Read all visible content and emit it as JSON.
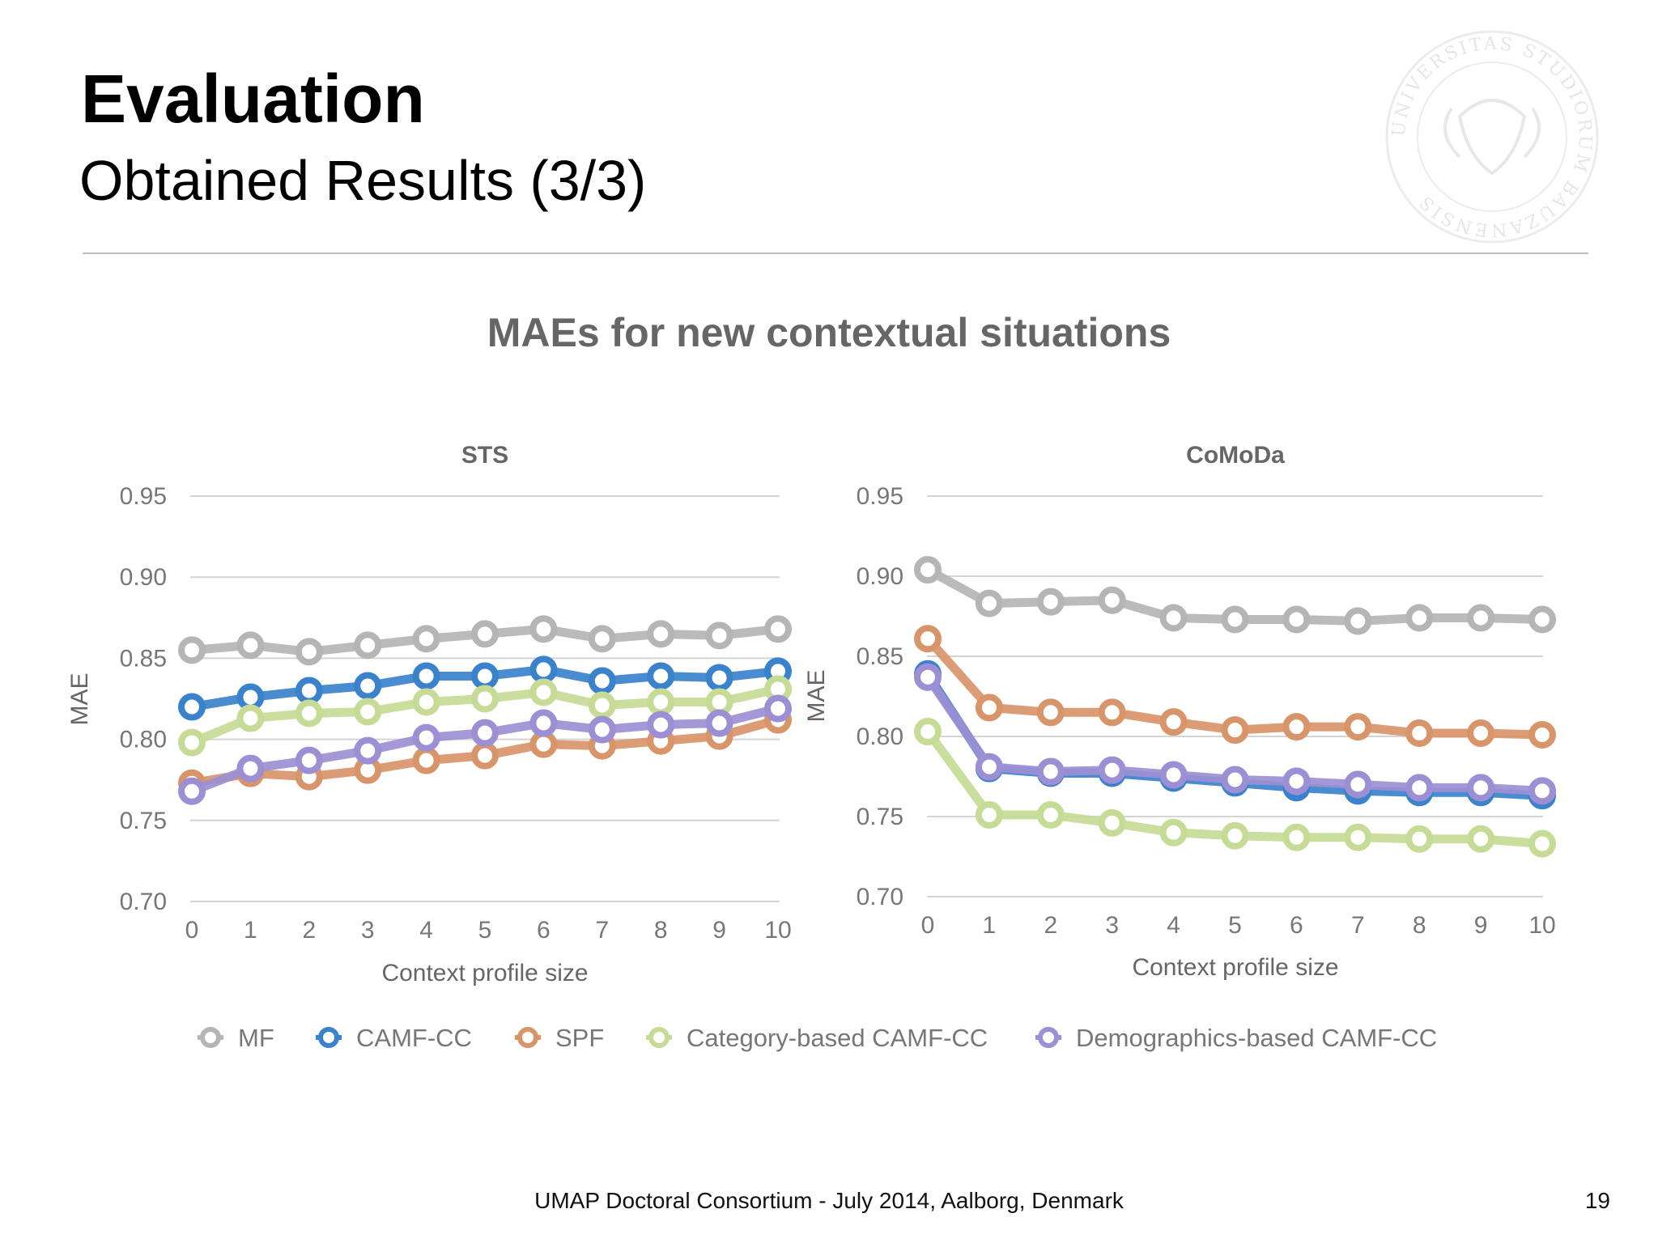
{
  "slide": {
    "title": "Evaluation",
    "subtitle": "Obtained Results (3/3)",
    "chart_title": "MAEs for new contextual situations",
    "footer": "UMAP Doctoral Consortium - July 2014, Aalborg, Denmark",
    "page_number": "19"
  },
  "logo": {
    "name": "university-seal",
    "text": "UNIVERSITAS STUDIORUM BAUZANENSIS"
  },
  "colors": {
    "MF": "#b5b5b5",
    "CAMF-CC": "#3b82cc",
    "SPF": "#d9956a",
    "Category-based CAMF-CC": "#c6dc96",
    "Demographics-based CAMF-CC": "#9c8fd4"
  },
  "chart_data": [
    {
      "type": "line",
      "title": "STS",
      "xlabel": "Context profile size",
      "ylabel": "MAE",
      "x": [
        0,
        1,
        2,
        3,
        4,
        5,
        6,
        7,
        8,
        9,
        10
      ],
      "ylim": [
        0.7,
        0.95
      ],
      "yticks": [
        "0.70",
        "0.75",
        "0.80",
        "0.85",
        "0.90",
        "0.95"
      ],
      "grid": true,
      "legend": "bottom",
      "series": [
        {
          "name": "MF",
          "values": [
            0.855,
            0.858,
            0.854,
            0.858,
            0.862,
            0.865,
            0.868,
            0.862,
            0.865,
            0.864,
            0.868
          ]
        },
        {
          "name": "CAMF-CC",
          "values": [
            0.82,
            0.826,
            0.83,
            0.833,
            0.839,
            0.839,
            0.843,
            0.836,
            0.839,
            0.838,
            0.842
          ]
        },
        {
          "name": "SPF",
          "values": [
            0.773,
            0.779,
            0.777,
            0.781,
            0.787,
            0.79,
            0.797,
            0.796,
            0.799,
            0.802,
            0.812
          ]
        },
        {
          "name": "Category-based CAMF-CC",
          "values": [
            0.798,
            0.813,
            0.816,
            0.817,
            0.823,
            0.825,
            0.829,
            0.821,
            0.823,
            0.823,
            0.831
          ]
        },
        {
          "name": "Demographics-based CAMF-CC",
          "values": [
            0.768,
            0.782,
            0.787,
            0.793,
            0.801,
            0.804,
            0.81,
            0.806,
            0.809,
            0.81,
            0.819
          ]
        }
      ]
    },
    {
      "type": "line",
      "title": "CoMoDa",
      "xlabel": "Context profile size",
      "ylabel": "MAE",
      "x": [
        0,
        1,
        2,
        3,
        4,
        5,
        6,
        7,
        8,
        9,
        10
      ],
      "ylim": [
        0.7,
        0.95
      ],
      "yticks": [
        "0.70",
        "0.75",
        "0.80",
        "0.85",
        "0.90",
        "0.95"
      ],
      "grid": true,
      "legend": "bottom",
      "series": [
        {
          "name": "MF",
          "values": [
            0.904,
            0.883,
            0.884,
            0.885,
            0.874,
            0.873,
            0.873,
            0.872,
            0.874,
            0.874,
            0.873
          ]
        },
        {
          "name": "CAMF-CC",
          "values": [
            0.839,
            0.78,
            0.777,
            0.777,
            0.774,
            0.771,
            0.768,
            0.766,
            0.765,
            0.765,
            0.763
          ]
        },
        {
          "name": "SPF",
          "values": [
            0.861,
            0.818,
            0.815,
            0.815,
            0.809,
            0.804,
            0.806,
            0.806,
            0.802,
            0.802,
            0.801
          ]
        },
        {
          "name": "Category-based CAMF-CC",
          "values": [
            0.803,
            0.751,
            0.751,
            0.746,
            0.74,
            0.738,
            0.737,
            0.737,
            0.736,
            0.736,
            0.733
          ]
        },
        {
          "name": "Demographics-based CAMF-CC",
          "values": [
            0.837,
            0.781,
            0.778,
            0.779,
            0.776,
            0.773,
            0.772,
            0.77,
            0.768,
            0.768,
            0.766
          ]
        }
      ]
    }
  ]
}
